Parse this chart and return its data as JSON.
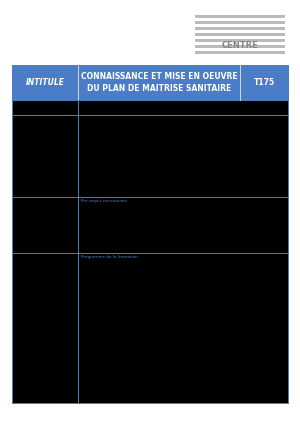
{
  "title_line1": "CONNAISSANCE ET MISE EN OEUVRE",
  "title_line2": "DU PLAN DE MAITRISE SANITAIRE",
  "code": "T175",
  "intitule_label": "INTITULE",
  "header_bg_color": "#4a7cc7",
  "header_text_color": "#ffffff",
  "border_color": "#4a7cc7",
  "page_bg": "#ffffff",
  "cell_bg": "#000000",
  "prereq_label": "Pre-requis necessaires",
  "prog_label": "Programme de la formation",
  "label_color": "#4a7cc7",
  "logo_color": "#aaaaaa",
  "fig_w": 3.0,
  "fig_h": 4.25,
  "dpi": 100
}
